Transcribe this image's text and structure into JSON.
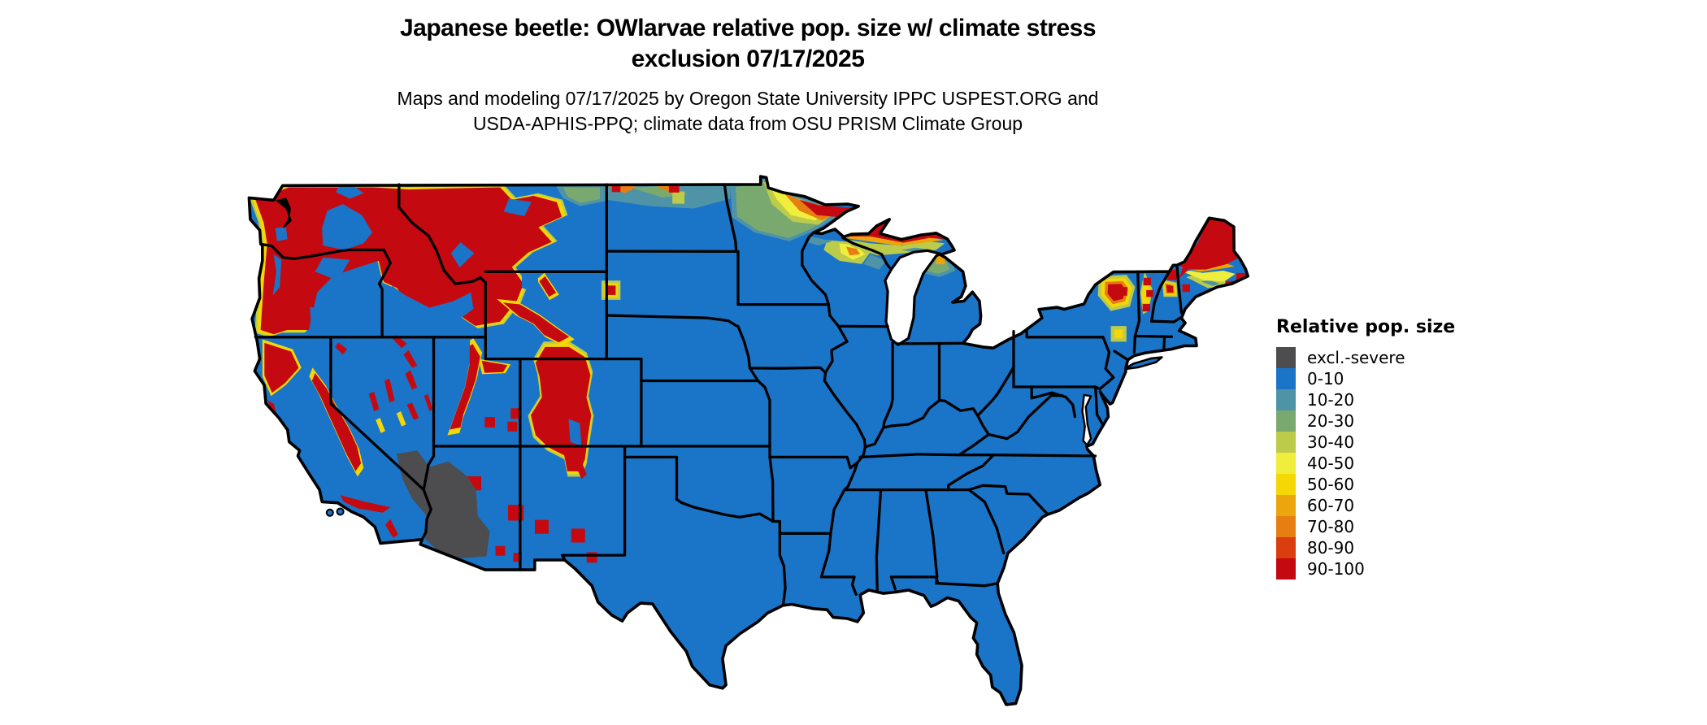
{
  "title": {
    "line1": "Japanese beetle: OWlarvae relative pop. size w/ climate stress",
    "line2": "exclusion 07/17/2025"
  },
  "subtitle": {
    "line1": "Maps and modeling 07/17/2025 by Oregon State University IPPC USPEST.ORG and",
    "line2": "USDA-APHIS-PPQ; climate data from OSU PRISM Climate Group"
  },
  "legend": {
    "title": "Relative pop. size",
    "items": [
      {
        "label": "excl.-severe",
        "color": "#4d4d4f"
      },
      {
        "label": "0-10",
        "color": "#1a75c9"
      },
      {
        "label": "10-20",
        "color": "#4f94a6"
      },
      {
        "label": "20-30",
        "color": "#7aa96f"
      },
      {
        "label": "30-40",
        "color": "#bccb4a"
      },
      {
        "label": "40-50",
        "color": "#f0ee3c"
      },
      {
        "label": "50-60",
        "color": "#f5d705"
      },
      {
        "label": "60-70",
        "color": "#eca50d"
      },
      {
        "label": "70-80",
        "color": "#e77e11"
      },
      {
        "label": "80-90",
        "color": "#da3d0e"
      },
      {
        "label": "90-100",
        "color": "#c40a10"
      }
    ]
  },
  "palette": {
    "excl": "#4d4d4f",
    "c0010": "#1a75c9",
    "c1020": "#4f94a6",
    "c2030": "#7aa96f",
    "c3040": "#bccb4a",
    "c4050": "#f0ee3c",
    "c5060": "#f5d705",
    "c6070": "#eca50d",
    "c7080": "#e77e11",
    "c8090": "#da3d0e",
    "c90100": "#c40a10",
    "border": "#000000",
    "water": "#ffffff"
  },
  "chart_data": {
    "type": "heatmap",
    "title": "Japanese beetle: OWlarvae relative pop. size w/ climate stress exclusion 07/17/2025",
    "region": "conterminous United States choropleth raster",
    "legend_title": "Relative pop. size",
    "classes": [
      "excl.-severe",
      "0-10",
      "10-20",
      "20-30",
      "30-40",
      "40-50",
      "50-60",
      "60-70",
      "70-80",
      "80-90",
      "90-100"
    ],
    "class_colors": [
      "#4d4d4f",
      "#1a75c9",
      "#4f94a6",
      "#7aa96f",
      "#bccb4a",
      "#f0ee3c",
      "#f5d705",
      "#eca50d",
      "#e77e11",
      "#da3d0e",
      "#c40a10"
    ],
    "legend_position": "right"
  }
}
